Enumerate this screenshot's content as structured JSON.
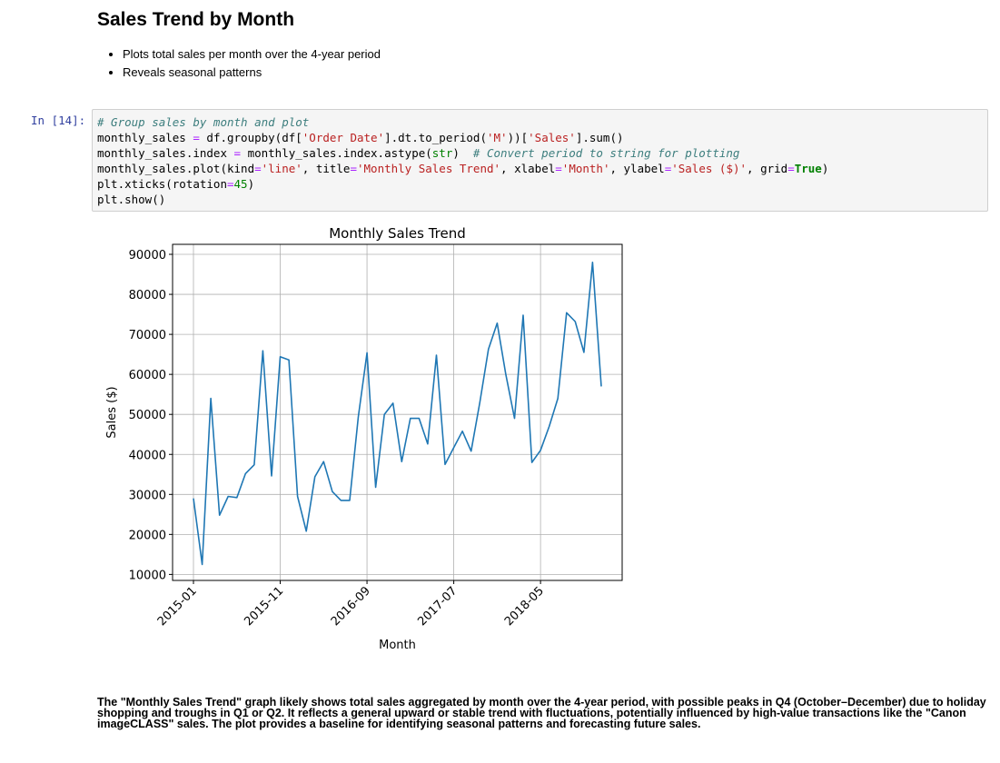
{
  "heading": "Sales Trend by Month",
  "bullets": [
    "Plots total sales per month over the 4-year period",
    "Reveals seasonal patterns"
  ],
  "prompt": "In [14]:",
  "code": {
    "l1_comment": "# Group sales by month and plot",
    "l2_a": "monthly_sales ",
    "l2_eq": "=",
    "l2_b": " df.groupby(df[",
    "l2_s1": "'Order Date'",
    "l2_c": "].dt.to_period(",
    "l2_s2": "'M'",
    "l2_d": "))[",
    "l2_s3": "'Sales'",
    "l2_e": "].sum()",
    "l3_a": "monthly_sales.index ",
    "l3_eq": "=",
    "l3_b": " monthly_sales.index.astype(",
    "l3_str": "str",
    "l3_c": ")  ",
    "l3_comment": "# Convert period to string for plotting",
    "l4_a": "monthly_sales.plot(kind",
    "l4_eq1": "=",
    "l4_s1": "'line'",
    "l4_b": ", title",
    "l4_eq2": "=",
    "l4_s2": "'Monthly Sales Trend'",
    "l4_c": ", xlabel",
    "l4_eq3": "=",
    "l4_s3": "'Month'",
    "l4_d": ", ylabel",
    "l4_eq4": "=",
    "l4_s4": "'Sales ($)'",
    "l4_e": ", grid",
    "l4_eq5": "=",
    "l4_true": "True",
    "l4_f": ")",
    "l5_a": "plt.xticks(rotation",
    "l5_eq": "=",
    "l5_num": "45",
    "l5_b": ")",
    "l6": "plt.show()"
  },
  "chart_data": {
    "type": "line",
    "title": "Monthly Sales Trend",
    "xlabel": "Month",
    "ylabel": "Sales ($)",
    "grid": true,
    "color": "#1f77b4",
    "ylim": [
      8500,
      92500
    ],
    "yticks": [
      10000,
      20000,
      30000,
      40000,
      50000,
      60000,
      70000,
      80000,
      90000
    ],
    "xtick_labels": [
      "2015-01",
      "2015-11",
      "2016-09",
      "2017-07",
      "2018-05"
    ],
    "xtick_index": [
      0,
      10,
      20,
      30,
      40
    ],
    "x": [
      "2015-01",
      "2015-02",
      "2015-03",
      "2015-04",
      "2015-05",
      "2015-06",
      "2015-07",
      "2015-08",
      "2015-09",
      "2015-10",
      "2015-11",
      "2015-12",
      "2016-01",
      "2016-02",
      "2016-03",
      "2016-04",
      "2016-05",
      "2016-06",
      "2016-07",
      "2016-08",
      "2016-09",
      "2016-10",
      "2016-11",
      "2016-12",
      "2017-01",
      "2017-02",
      "2017-03",
      "2017-04",
      "2017-05",
      "2017-06",
      "2017-07",
      "2017-08",
      "2017-09",
      "2017-10",
      "2017-11",
      "2017-12",
      "2018-01",
      "2018-02",
      "2018-03",
      "2018-04",
      "2018-05",
      "2018-06",
      "2018-07",
      "2018-08",
      "2018-09",
      "2018-10",
      "2018-11",
      "2018-12"
    ],
    "values": [
      29000,
      12500,
      54000,
      24800,
      29500,
      29200,
      35200,
      37400,
      65900,
      34600,
      64400,
      63600,
      29500,
      20800,
      34400,
      38200,
      30700,
      28500,
      28500,
      49400,
      65400,
      31800,
      50000,
      52800,
      38200,
      49000,
      49000,
      42600,
      64800,
      37500,
      41700,
      45800,
      40800,
      53000,
      66300,
      72800,
      60000,
      49000,
      74800,
      38000,
      41000,
      47000,
      54000,
      75400,
      73200,
      65500,
      88000,
      57000
    ]
  },
  "explanation": "The \"Monthly Sales Trend\" graph likely shows total sales aggregated by month over the 4-year period, with possible peaks in Q4 (October–December) due to holiday shopping and troughs in Q1 or Q2. It reflects a general upward or stable trend with fluctuations, potentially influenced by high-value transactions like the \"Canon imageCLASS\" sales. The plot provides a baseline for identifying seasonal patterns and forecasting future sales."
}
